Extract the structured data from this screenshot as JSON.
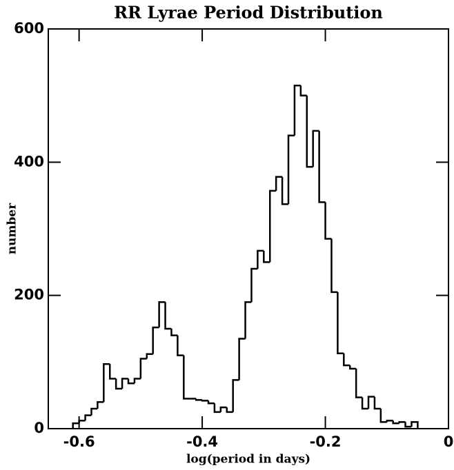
{
  "chart_data": {
    "type": "histogram",
    "title": "RR Lyrae Period Distribution",
    "x_label": "log(period in days)",
    "y_label": "number",
    "bins": [
      -0.61,
      -0.6,
      -0.59,
      -0.58,
      -0.57,
      -0.56,
      -0.55,
      -0.54,
      -0.53,
      -0.52,
      -0.51,
      -0.5,
      -0.49,
      -0.48,
      -0.47,
      -0.46,
      -0.45,
      -0.44,
      -0.43,
      -0.42,
      -0.41,
      -0.4,
      -0.39,
      -0.38,
      -0.37,
      -0.36,
      -0.35,
      -0.34,
      -0.33,
      -0.32,
      -0.31,
      -0.3,
      -0.29,
      -0.28,
      -0.27,
      -0.26,
      -0.25,
      -0.24,
      -0.23,
      -0.22,
      -0.21,
      -0.2,
      -0.19,
      -0.18,
      -0.17,
      -0.16,
      -0.15,
      -0.14,
      -0.13,
      -0.12,
      -0.11,
      -0.1,
      -0.09,
      -0.08,
      -0.07,
      -0.06,
      -0.05
    ],
    "values": [
      8,
      12,
      20,
      30,
      40,
      97,
      75,
      60,
      75,
      68,
      75,
      105,
      112,
      152,
      190,
      150,
      140,
      110,
      45,
      45,
      43,
      42,
      38,
      25,
      32,
      25,
      73,
      135,
      190,
      240,
      267,
      250,
      357,
      378,
      337,
      440,
      515,
      500,
      393,
      447,
      340,
      285,
      205,
      113,
      95,
      90,
      47,
      30,
      48,
      30,
      10,
      12,
      8,
      10,
      3,
      10
    ],
    "color": "#000000",
    "xlim": [
      -0.65,
      0
    ],
    "ylim": [
      0,
      600
    ],
    "xticks": [
      -0.6,
      -0.4,
      -0.2,
      0
    ],
    "yticks": [
      0,
      200,
      400,
      600
    ]
  }
}
